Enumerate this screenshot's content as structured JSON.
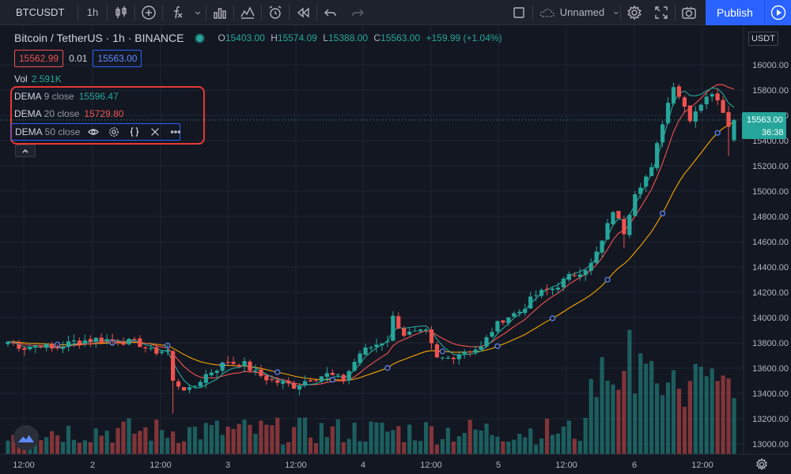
{
  "toolbar": {
    "symbol": "BTCUSDT",
    "interval": "1h",
    "layout_name": "Unnamed",
    "publish_label": "Publish"
  },
  "legend": {
    "title": "Bitcoin / TetherUS · 1h · BINANCE",
    "open_label": "O",
    "open": "15403.00",
    "high_label": "H",
    "high": "15574.09",
    "low_label": "L",
    "low": "15388.00",
    "close_label": "C",
    "close": "15563.00",
    "change": "+159.99 (+1.04%)",
    "sell_price": "15562.99",
    "spread": "0.01",
    "buy_price": "15563.00",
    "vol_label": "Vol",
    "vol_value": "2.591K"
  },
  "indicators": [
    {
      "name": "DEMA",
      "params": "9 close",
      "value": "15596.47",
      "color": "#26a69a"
    },
    {
      "name": "DEMA",
      "params": "20 close",
      "value": "15729.80",
      "color": "#ef5350"
    },
    {
      "name": "DEMA",
      "params": "50 close",
      "value": "",
      "color": "#f7a600"
    }
  ],
  "price_scale": {
    "currency": "USDT",
    "labels": [
      "16000.00",
      "15800.00",
      "15600.00",
      "15400.00",
      "15200.00",
      "15000.00",
      "14800.00",
      "14600.00",
      "14400.00",
      "14200.00",
      "14000.00",
      "13800.00",
      "13600.00",
      "13400.00",
      "13200.00",
      "13000.00"
    ],
    "last_price": "15563.00",
    "countdown": "36:38"
  },
  "time_scale": {
    "labels": [
      "12:00",
      "2",
      "12:00",
      "3",
      "12:00",
      "4",
      "12:00",
      "5",
      "12:00",
      "6",
      "12:00"
    ]
  },
  "colors": {
    "up": "#26a69a",
    "down": "#ef5350",
    "dema9": "#26a69a",
    "dema20": "#ef5350",
    "dema50": "#f7a600",
    "accent": "#2962ff"
  },
  "icons": [
    "candles-icon",
    "add-indicator-icon",
    "fx-icon",
    "bar-chart-icon",
    "compare-icon",
    "alert-icon",
    "replay-icon",
    "undo-icon",
    "redo-icon",
    "fullscreen-icon",
    "cloud-icon",
    "settings-icon",
    "camera-icon",
    "play-icon"
  ],
  "chart_data": {
    "type": "candlestick",
    "ylim": [
      12900,
      16200
    ],
    "candle_anchors": [
      [
        0,
        13810
      ],
      [
        3,
        13760
      ],
      [
        6,
        13790
      ],
      [
        8,
        13750
      ],
      [
        12,
        13810
      ],
      [
        16,
        13830
      ],
      [
        20,
        13820
      ],
      [
        24,
        13790
      ],
      [
        26,
        13730
      ],
      [
        29,
        13740
      ],
      [
        30,
        13490
      ],
      [
        33,
        13420
      ],
      [
        36,
        13550
      ],
      [
        40,
        13650
      ],
      [
        43,
        13630
      ],
      [
        45,
        13560
      ],
      [
        48,
        13500
      ],
      [
        52,
        13460
      ],
      [
        55,
        13520
      ],
      [
        58,
        13550
      ],
      [
        61,
        13510
      ],
      [
        64,
        13720
      ],
      [
        67,
        13790
      ],
      [
        69,
        13830
      ],
      [
        70,
        14000
      ],
      [
        72,
        13870
      ],
      [
        76,
        13880
      ],
      [
        78,
        13670
      ],
      [
        80,
        13680
      ],
      [
        83,
        13740
      ],
      [
        86,
        13760
      ],
      [
        88,
        13900
      ],
      [
        90,
        13990
      ],
      [
        93,
        14050
      ],
      [
        96,
        14180
      ],
      [
        99,
        14230
      ],
      [
        102,
        14320
      ],
      [
        106,
        14420
      ],
      [
        108,
        14600
      ],
      [
        110,
        14850
      ],
      [
        112,
        14680
      ],
      [
        114,
        15000
      ],
      [
        117,
        15170
      ],
      [
        119,
        15550
      ],
      [
        121,
        15850
      ],
      [
        124,
        15580
      ],
      [
        127,
        15760
      ],
      [
        129,
        15740
      ],
      [
        131,
        15540
      ],
      [
        132,
        15563
      ]
    ],
    "candle_count": 133,
    "last_candle": {
      "open": 15403.0,
      "high": 15574.09,
      "low": 15388.0,
      "close": 15563.0
    }
  }
}
